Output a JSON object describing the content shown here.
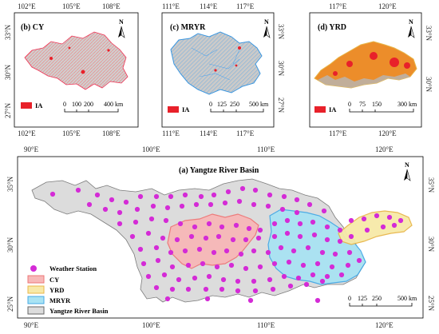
{
  "colors": {
    "basin_fill": "#dcdcdc",
    "basin_stroke": "#666666",
    "cy_fill": "#f7b8b8",
    "cy_stroke": "#ee7777",
    "yrd_fill": "#f7e9a8",
    "yrd_stroke": "#e8b64a",
    "mryr_fill": "#a9e3f3",
    "mryr_stroke": "#45a9e6",
    "station": "#d42bd6",
    "ia": "#e8212a",
    "yrd_inset_fill": "#ec8d2a"
  },
  "panels": {
    "b": {
      "title": "(b) CY",
      "top_ticks": [
        "102°E",
        "105°E",
        "108°E"
      ],
      "bottom_ticks": [
        "102°E",
        "105°E",
        "108°E"
      ],
      "left_ticks": [
        "33°N",
        "30°N",
        "27°N"
      ],
      "right_ticks": [],
      "legend_label": "IA",
      "scale": {
        "labels": [
          "0",
          "100",
          "200",
          "400 km"
        ]
      },
      "north": "N"
    },
    "c": {
      "title": "(c) MRYR",
      "top_ticks": [
        "111°E",
        "114°E",
        "117°E"
      ],
      "bottom_ticks": [
        "111°E",
        "114°E",
        "117°E"
      ],
      "left_ticks": [],
      "right_ticks": [
        "33°N",
        "30°N",
        "27°N"
      ],
      "legend_label": "IA",
      "scale": {
        "labels": [
          "0",
          "125",
          "250",
          "500 km"
        ]
      },
      "north": "N"
    },
    "d": {
      "title": "(d) YRD",
      "top_ticks": [
        "117°E",
        "120°E"
      ],
      "bottom_ticks": [
        "117°E",
        "120°E"
      ],
      "left_ticks": [],
      "right_ticks": [
        "33°N",
        "30°N"
      ],
      "legend_label": "IA",
      "scale": {
        "labels": [
          "0",
          "75",
          "150",
          "300 km"
        ]
      },
      "north": "N"
    },
    "a": {
      "title": "(a) Yangtze River Basin",
      "top_ticks": [
        "90°E",
        "100°E",
        "110°E",
        "120°E"
      ],
      "bottom_ticks": [
        "90°E",
        "100°E",
        "110°E",
        "120°E"
      ],
      "left_ticks": [
        "35°N",
        "30°N",
        "25°N"
      ],
      "right_ticks": [
        "35°N",
        "30°N",
        "25°N"
      ],
      "legend": {
        "station": "Weather Station",
        "cy": "CY",
        "yrd": "YRD",
        "mryr": "MRYR",
        "basin": "Yangtze River Basin"
      },
      "scale": {
        "labels": [
          "0",
          "125",
          "250",
          "500 km"
        ]
      },
      "north": "N"
    }
  }
}
